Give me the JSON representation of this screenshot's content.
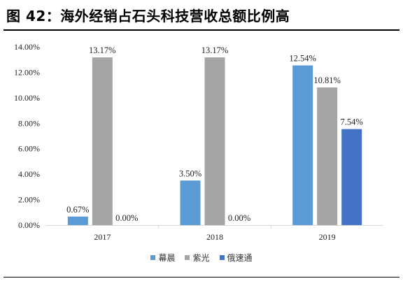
{
  "figure": {
    "title": "图 42：海外经销占石头科技营收总额比例高"
  },
  "chart_data": {
    "type": "bar",
    "categories": [
      "2017",
      "2018",
      "2019"
    ],
    "series": [
      {
        "name": "幕晨",
        "values": [
          0.67,
          3.5,
          12.54
        ],
        "labels": [
          "0.67%",
          "3.50%",
          "12.54%"
        ],
        "color": "#5B9BD5"
      },
      {
        "name": "紫光",
        "values": [
          13.17,
          13.17,
          10.81
        ],
        "labels": [
          "13.17%",
          "13.17%",
          "10.81%"
        ],
        "color": "#A5A5A5"
      },
      {
        "name": "俄速通",
        "values": [
          0.0,
          0.0,
          7.54
        ],
        "labels": [
          "0.00%",
          "0.00%",
          "7.54%"
        ],
        "color": "#4472C4"
      }
    ],
    "ylim": [
      0,
      14
    ],
    "yticks": [
      "0.00%",
      "2.00%",
      "4.00%",
      "6.00%",
      "8.00%",
      "10.00%",
      "12.00%",
      "14.00%"
    ],
    "xlabel": "",
    "ylabel": "",
    "grid": false,
    "legend_position": "bottom"
  }
}
